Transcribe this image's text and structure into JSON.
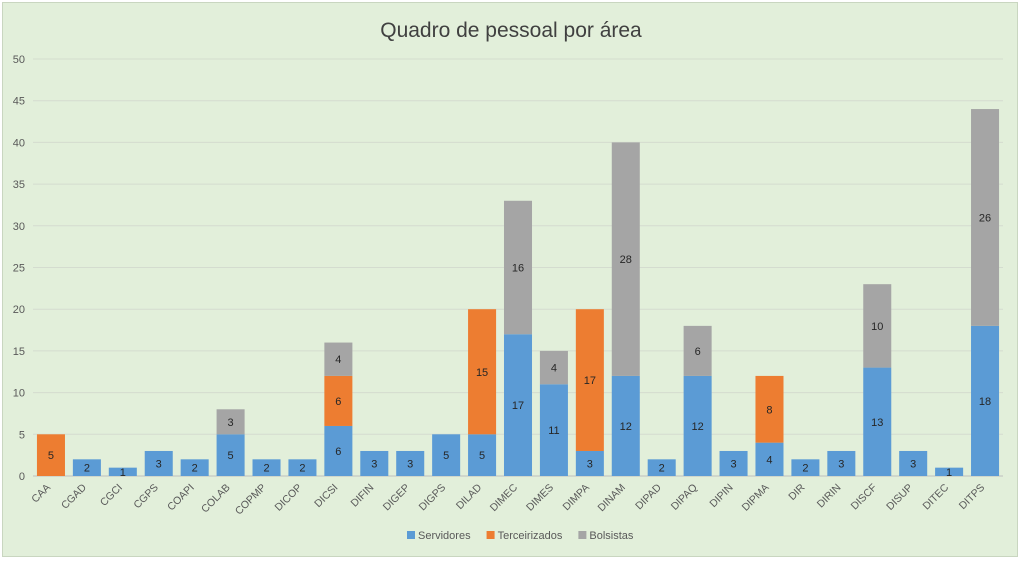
{
  "chart_data": {
    "type": "bar",
    "stacked": true,
    "title": "Quadro de pessoal por área",
    "xlabel": "",
    "ylabel": "",
    "ylim": [
      0,
      50
    ],
    "yticks": [
      0,
      5,
      10,
      15,
      20,
      25,
      30,
      35,
      40,
      45,
      50
    ],
    "grid": true,
    "legend_position": "bottom",
    "categories": [
      "CAA",
      "CGAD",
      "CGCI",
      "CGPS",
      "COAPI",
      "COLAB",
      "COPMP",
      "DICOP",
      "DICSI",
      "DIFIN",
      "DIGEP",
      "DIGPS",
      "DILAD",
      "DIMEC",
      "DIMES",
      "DIMPA",
      "DINAM",
      "DIPAD",
      "DIPAQ",
      "DIPIN",
      "DIPMA",
      "DIR",
      "DIRIN",
      "DISCF",
      "DISUP",
      "DITEC",
      "DITPS"
    ],
    "series": [
      {
        "name": "Servidores",
        "color": "#5b9bd5",
        "values": [
          0,
          2,
          1,
          3,
          2,
          5,
          2,
          2,
          6,
          3,
          3,
          5,
          5,
          17,
          11,
          3,
          12,
          2,
          12,
          3,
          4,
          2,
          3,
          13,
          3,
          1,
          18
        ]
      },
      {
        "name": "Terceirizados",
        "color": "#ed7d31",
        "values": [
          5,
          0,
          0,
          0,
          0,
          0,
          0,
          0,
          6,
          0,
          0,
          0,
          15,
          0,
          0,
          17,
          0,
          0,
          0,
          0,
          8,
          0,
          0,
          0,
          0,
          0,
          0
        ]
      },
      {
        "name": "Bolsistas",
        "color": "#a5a5a5",
        "values": [
          0,
          0,
          0,
          0,
          0,
          3,
          0,
          0,
          4,
          0,
          0,
          0,
          0,
          16,
          4,
          0,
          28,
          0,
          6,
          0,
          0,
          0,
          0,
          10,
          0,
          0,
          26
        ]
      }
    ]
  }
}
